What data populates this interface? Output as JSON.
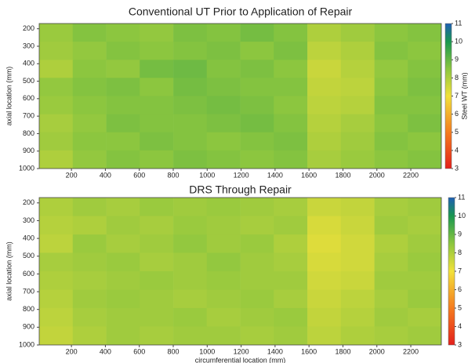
{
  "chart_data": [
    {
      "type": "heatmap",
      "title": "Conventional UT Prior to Application of Repair",
      "ylabel": "axial location (mm)",
      "x": [
        109,
        306,
        504,
        701,
        899,
        1096,
        1294,
        1491,
        1689,
        1886,
        2084,
        2281
      ],
      "y": [
        222,
        326,
        430,
        533,
        637,
        741,
        844,
        948
      ],
      "z": [
        [
          8.3,
          8.6,
          8.5,
          8.4,
          8.7,
          8.6,
          8.8,
          8.6,
          8.0,
          8.2,
          8.5,
          8.6
        ],
        [
          8.2,
          8.4,
          8.6,
          8.5,
          8.6,
          8.7,
          8.5,
          8.7,
          7.8,
          8.0,
          8.6,
          8.5
        ],
        [
          8.0,
          8.5,
          8.4,
          8.8,
          8.9,
          8.6,
          8.7,
          8.5,
          7.6,
          7.9,
          8.4,
          8.6
        ],
        [
          8.4,
          8.6,
          8.7,
          8.5,
          8.8,
          8.7,
          8.6,
          8.6,
          7.7,
          7.8,
          8.5,
          8.7
        ],
        [
          8.3,
          8.5,
          8.6,
          8.6,
          8.7,
          8.8,
          8.7,
          8.5,
          7.8,
          7.9,
          8.6,
          8.6
        ],
        [
          8.1,
          8.4,
          8.7,
          8.6,
          8.6,
          8.7,
          8.8,
          8.6,
          7.9,
          8.1,
          8.5,
          8.7
        ],
        [
          8.2,
          8.5,
          8.5,
          8.7,
          8.6,
          8.5,
          8.6,
          8.7,
          8.0,
          8.2,
          8.6,
          8.5
        ],
        [
          8.0,
          8.4,
          8.6,
          8.5,
          8.7,
          8.6,
          8.5,
          8.6,
          8.1,
          8.3,
          8.5,
          8.6
        ]
      ],
      "xlim": [
        10,
        2380
      ],
      "ylim": [
        1000,
        170
      ],
      "xticks": [
        200,
        400,
        600,
        800,
        1000,
        1200,
        1400,
        1600,
        1800,
        2000,
        2200
      ],
      "yticks": [
        200,
        300,
        400,
        500,
        600,
        700,
        800,
        900,
        1000
      ],
      "colorbar": {
        "label": "Steel WT (mm)",
        "lim": [
          3,
          11
        ],
        "ticks": [
          3,
          4,
          5,
          6,
          7,
          8,
          9,
          10,
          11
        ]
      },
      "colormap": [
        {
          "value": 3,
          "color": "#e3201b"
        },
        {
          "value": 5,
          "color": "#f57c1f"
        },
        {
          "value": 7,
          "color": "#f2e13a"
        },
        {
          "value": 8.5,
          "color": "#8cc63f"
        },
        {
          "value": 10,
          "color": "#1a9850"
        },
        {
          "value": 11,
          "color": "#1f5fb4"
        }
      ]
    },
    {
      "type": "heatmap",
      "title": "DRS Through Repair",
      "xlabel": "circumferential location (mm)",
      "ylabel": "axial location (mm)",
      "x": [
        109,
        306,
        504,
        701,
        899,
        1096,
        1294,
        1491,
        1689,
        1886,
        2084,
        2281
      ],
      "y": [
        222,
        326,
        430,
        533,
        637,
        741,
        844,
        948
      ],
      "z": [
        [
          8.0,
          8.2,
          8.1,
          8.3,
          8.2,
          8.3,
          8.2,
          8.1,
          7.6,
          7.7,
          8.1,
          8.2
        ],
        [
          7.9,
          8.0,
          8.2,
          8.1,
          8.3,
          8.2,
          8.1,
          8.2,
          7.4,
          7.6,
          8.2,
          8.1
        ],
        [
          7.8,
          8.3,
          8.1,
          8.2,
          8.4,
          8.2,
          8.3,
          8.0,
          7.3,
          7.5,
          8.0,
          8.2
        ],
        [
          8.1,
          8.2,
          8.3,
          8.1,
          8.2,
          8.4,
          8.2,
          8.1,
          7.4,
          7.5,
          8.1,
          8.3
        ],
        [
          8.0,
          8.1,
          8.2,
          8.3,
          8.2,
          8.3,
          8.2,
          8.2,
          7.5,
          7.6,
          8.2,
          8.2
        ],
        [
          7.9,
          8.2,
          8.3,
          8.2,
          8.1,
          8.2,
          8.3,
          8.1,
          7.6,
          7.8,
          8.1,
          8.3
        ],
        [
          7.8,
          8.1,
          8.2,
          8.2,
          8.3,
          8.1,
          8.2,
          8.3,
          7.7,
          7.9,
          8.2,
          8.1
        ],
        [
          7.7,
          8.0,
          8.2,
          8.1,
          8.2,
          8.2,
          8.1,
          8.2,
          7.8,
          8.0,
          8.1,
          8.2
        ]
      ],
      "xlim": [
        10,
        2380
      ],
      "ylim": [
        1000,
        170
      ],
      "xticks": [
        200,
        400,
        600,
        800,
        1000,
        1200,
        1400,
        1600,
        1800,
        2000,
        2200
      ],
      "yticks": [
        200,
        300,
        400,
        500,
        600,
        700,
        800,
        900,
        1000
      ],
      "colorbar": {
        "lim": [
          3,
          11
        ],
        "ticks": [
          3,
          4,
          5,
          6,
          7,
          8,
          9,
          10,
          11
        ]
      },
      "colormap": [
        {
          "value": 3,
          "color": "#e3201b"
        },
        {
          "value": 5,
          "color": "#f57c1f"
        },
        {
          "value": 7,
          "color": "#f2e13a"
        },
        {
          "value": 8.5,
          "color": "#8cc63f"
        },
        {
          "value": 10,
          "color": "#1a9850"
        },
        {
          "value": 11,
          "color": "#1f5fb4"
        }
      ]
    }
  ]
}
